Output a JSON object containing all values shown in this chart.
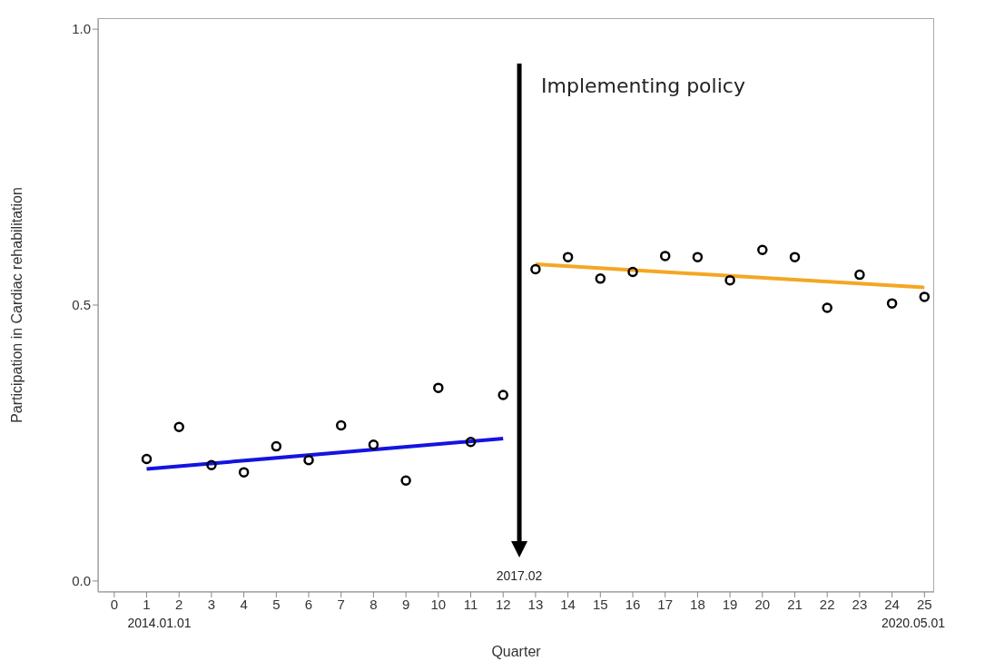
{
  "chart_data": {
    "type": "scatter",
    "xlabel": "Quarter",
    "ylabel": "Participation in Cardiac rehabilitation",
    "xlim": [
      -0.5,
      25.3
    ],
    "ylim": [
      -0.02,
      1.02
    ],
    "xticks": [
      0,
      1,
      2,
      3,
      4,
      5,
      6,
      7,
      8,
      9,
      10,
      11,
      12,
      13,
      14,
      15,
      16,
      17,
      18,
      19,
      20,
      21,
      22,
      23,
      24,
      25
    ],
    "yticks": [
      {
        "value": 0,
        "label": "0.0"
      },
      {
        "value": 0.5,
        "label": "0.5"
      },
      {
        "value": 1,
        "label": "1.0"
      }
    ],
    "grid": false,
    "legend": false,
    "series": [
      {
        "color": "#000000",
        "marker": "circle",
        "x": [
          1,
          2,
          3,
          4,
          5,
          6,
          7,
          8,
          9,
          10,
          11,
          12,
          13,
          14,
          15,
          16,
          17,
          18,
          19,
          20,
          21,
          22,
          23,
          24,
          25
        ],
        "values": [
          0.221,
          0.279,
          0.21,
          0.197,
          0.244,
          0.219,
          0.282,
          0.247,
          0.182,
          0.35,
          0.252,
          0.337,
          0.565,
          0.587,
          0.548,
          0.56,
          0.589,
          0.587,
          0.545,
          0.6,
          0.587,
          0.495,
          0.555,
          0.503,
          0.515
        ]
      },
      {
        "type": "line",
        "marker": "none",
        "color": "#1414e0",
        "x": [
          1,
          12
        ],
        "values": [
          0.203,
          0.258
        ]
      },
      {
        "type": "line",
        "marker": "none",
        "color": "#f5a623",
        "x": [
          13,
          25
        ],
        "values": [
          0.574,
          0.532
        ]
      }
    ],
    "ref_lines": [
      {
        "axis": "x",
        "value": 12.5,
        "label": "Implementing policy",
        "color": "#000000"
      }
    ],
    "annotations": [
      "2017.02",
      "2014.01.01",
      "2020.05.01"
    ]
  }
}
